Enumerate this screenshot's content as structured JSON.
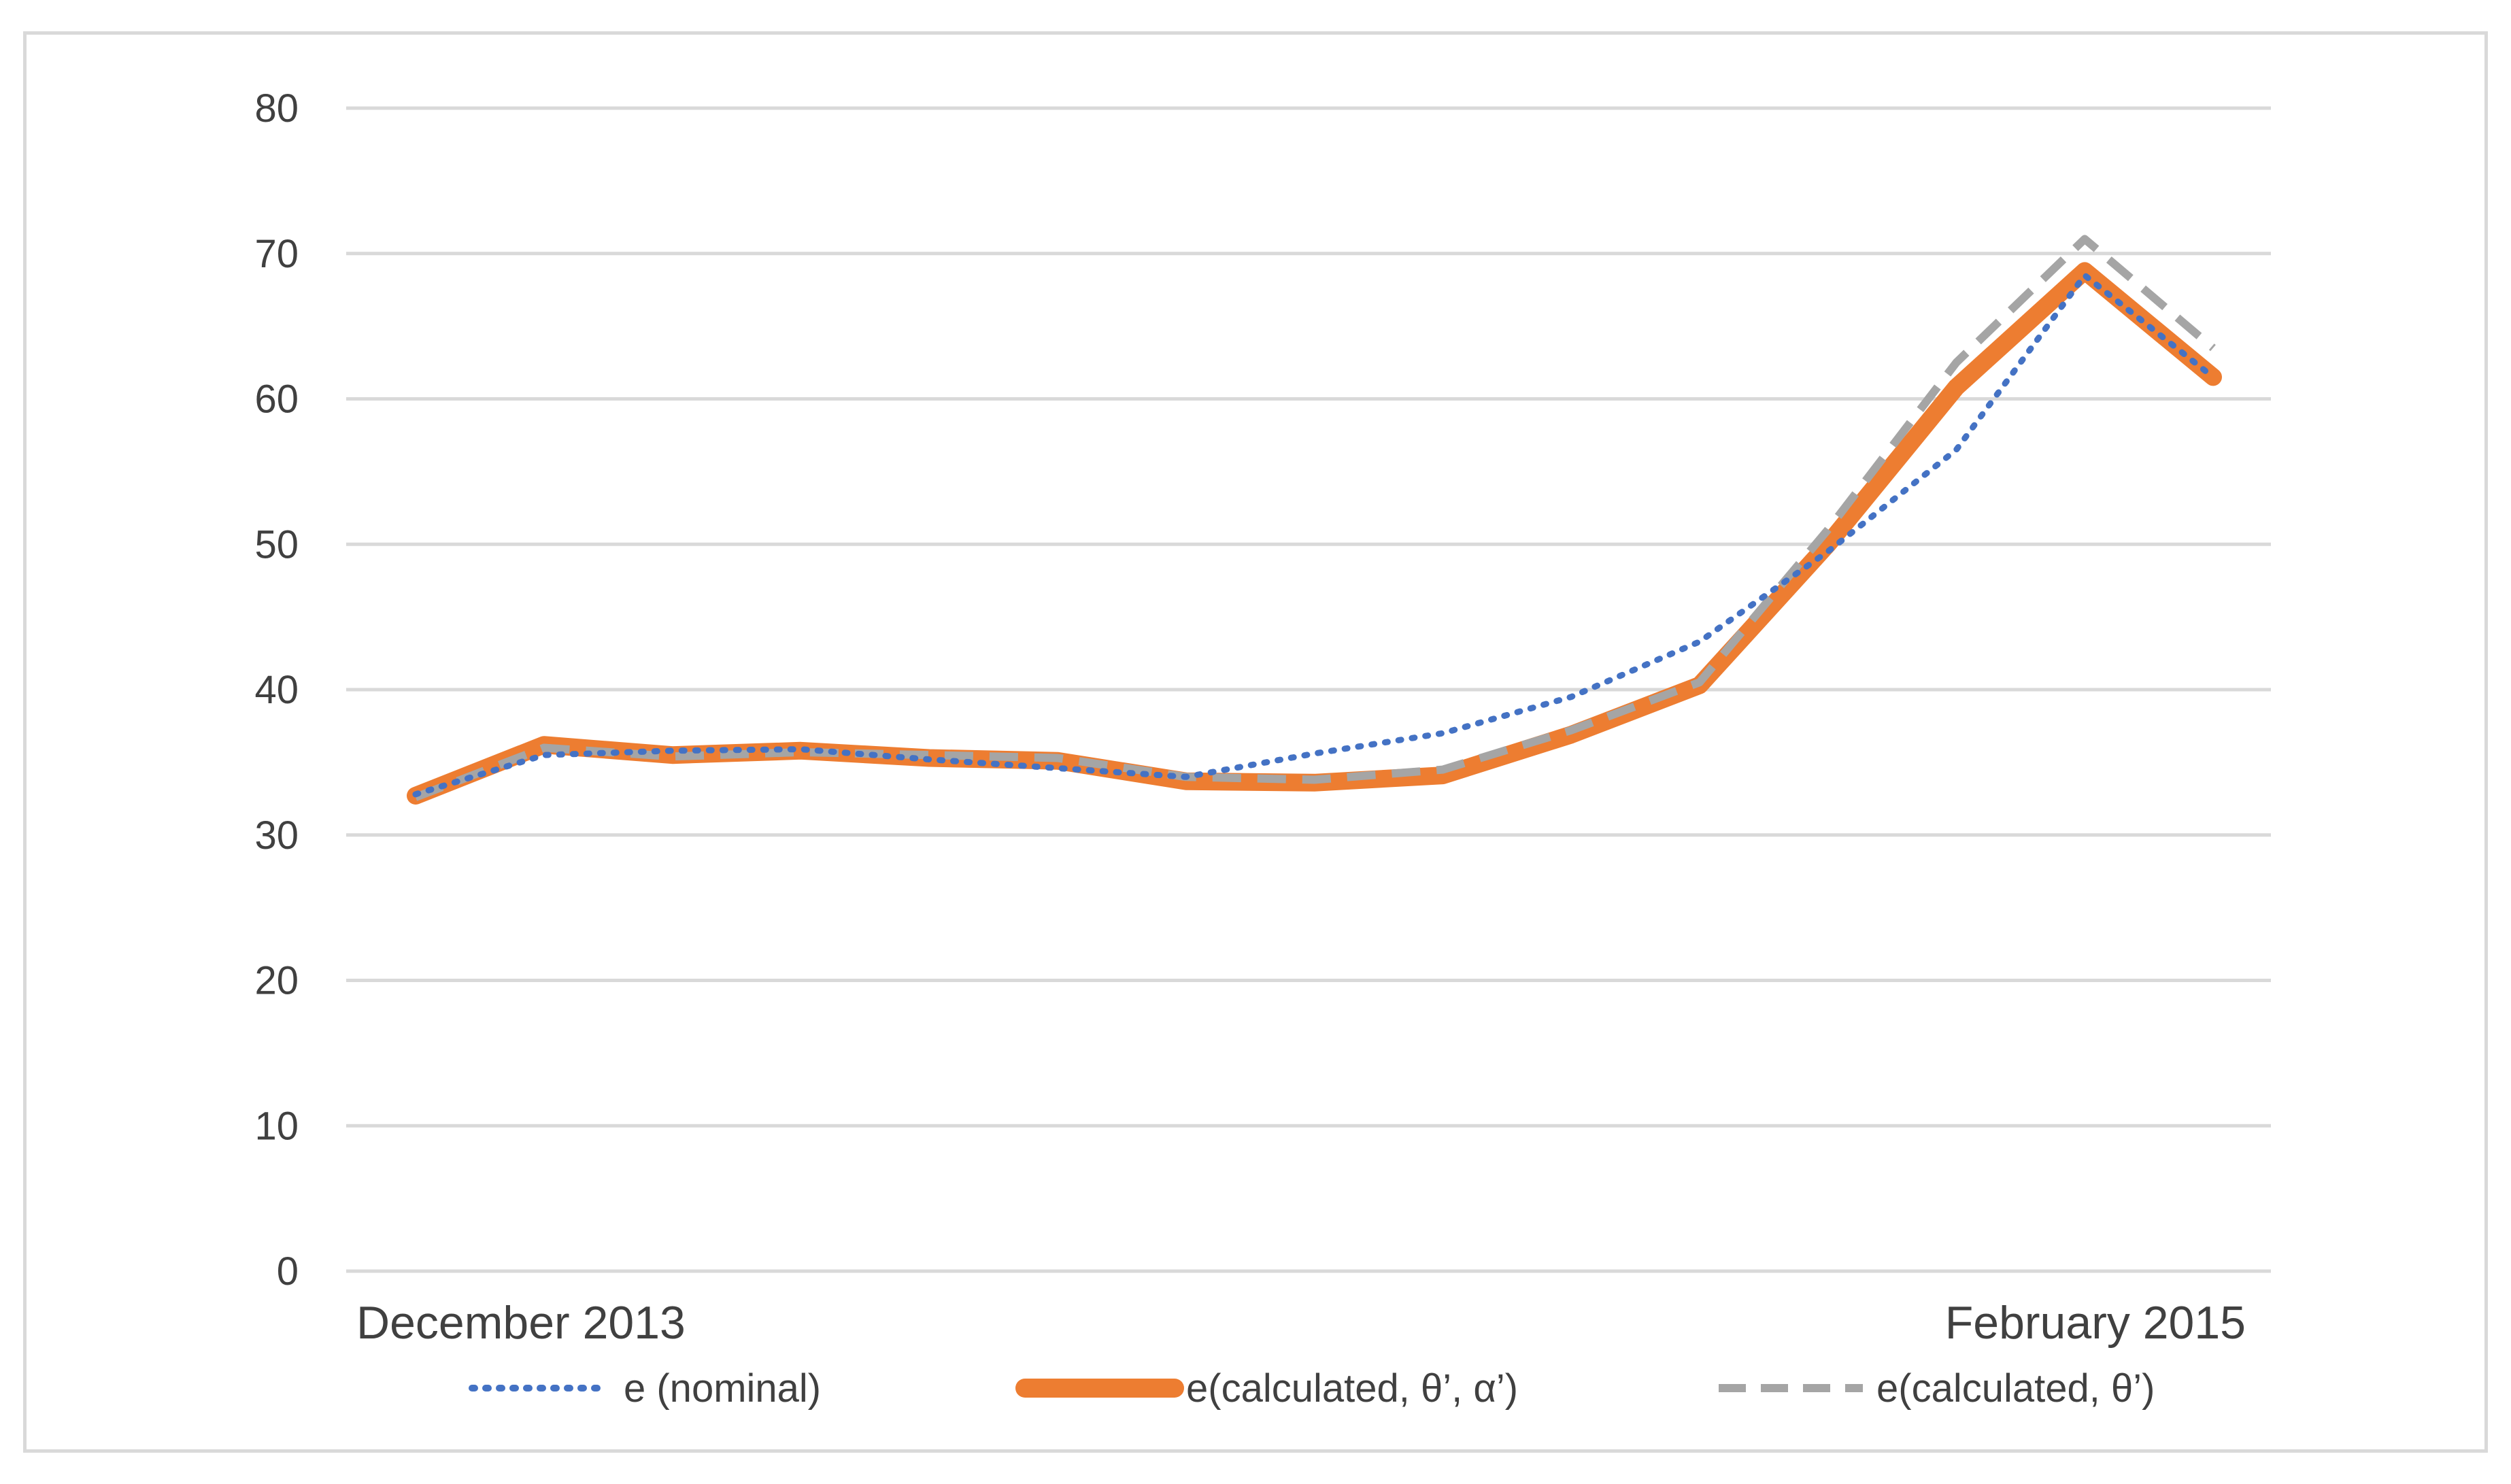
{
  "chart_data": {
    "type": "line",
    "x_labels": [
      "December  2013",
      "February 2015"
    ],
    "y_ticks": [
      0,
      10,
      20,
      30,
      40,
      50,
      60,
      70,
      80
    ],
    "ylim": [
      0,
      80
    ],
    "grid": true,
    "legend_position": "bottom",
    "series": [
      {
        "name": "e (nominal)",
        "style": "dotted",
        "color": "#4472c4",
        "values": [
          32.8,
          35.5,
          35.8,
          35.9,
          35.2,
          34.6,
          34.0,
          35.6,
          37.0,
          39.5,
          43.3,
          49.5,
          56.5,
          68.5,
          61.5
        ]
      },
      {
        "name": "e(calculated, θ’, α’)",
        "style": "solid",
        "color": "#ed7d31",
        "values": [
          32.7,
          36.2,
          35.5,
          35.8,
          35.3,
          35.1,
          33.7,
          33.6,
          34.1,
          36.9,
          40.3,
          50.0,
          60.8,
          68.8,
          61.5
        ]
      },
      {
        "name": "e(calculated, θ’)",
        "style": "dashed",
        "color": "#a5a5a5",
        "values": [
          32.6,
          36.0,
          35.4,
          35.7,
          35.5,
          35.3,
          34.0,
          33.8,
          34.5,
          37.2,
          40.5,
          51.0,
          62.5,
          71.0,
          63.5
        ]
      }
    ]
  }
}
